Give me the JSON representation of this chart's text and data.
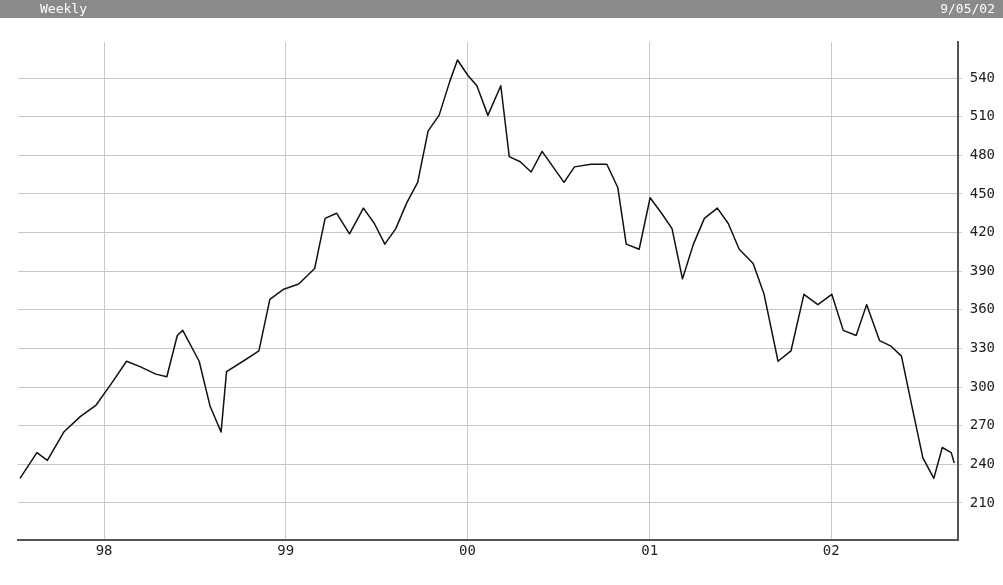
{
  "chart_data": {
    "type": "line",
    "title": "Weekly",
    "annotations": [
      "9/05/02"
    ],
    "x": [
      "1997-07-16",
      "1997-08-19",
      "1997-09-09",
      "1997-10-12",
      "1997-11-14",
      "1997-12-16",
      "1998-01-18",
      "1998-02-15",
      "1998-03-13",
      "1998-04-15",
      "1998-05-07",
      "1998-05-28",
      "1998-06-08",
      "1998-07-11",
      "1998-08-02",
      "1998-08-24",
      "1998-09-04",
      "1998-10-07",
      "1998-11-08",
      "1998-11-30",
      "1998-12-28",
      "1999-01-27",
      "1999-02-28",
      "1999-03-21",
      "1999-04-13",
      "1999-05-09",
      "1999-06-06",
      "1999-06-28",
      "1999-07-19",
      "1999-08-10",
      "1999-09-01",
      "1999-09-23",
      "1999-10-14",
      "1999-11-05",
      "1999-11-27",
      "1999-12-12",
      "2000-01-02",
      "2000-01-20",
      "2000-02-11",
      "2000-03-08",
      "2000-03-25",
      "2000-04-16",
      "2000-05-08",
      "2000-05-30",
      "2000-06-21",
      "2000-07-13",
      "2000-08-03",
      "2000-09-05",
      "2000-10-07",
      "2000-10-29",
      "2000-11-15",
      "2000-12-11",
      "2001-01-02",
      "2001-01-25",
      "2001-02-15",
      "2001-03-08",
      "2001-03-30",
      "2001-04-21",
      "2001-05-17",
      "2001-06-08",
      "2001-06-30",
      "2001-07-28",
      "2001-08-19",
      "2001-09-16",
      "2001-10-12",
      "2001-11-07",
      "2001-12-05",
      "2002-01-02",
      "2002-01-25",
      "2002-02-20",
      "2002-03-13",
      "2002-04-08",
      "2002-04-30",
      "2002-05-22",
      "2002-06-12",
      "2002-07-04",
      "2002-07-26",
      "2002-08-12",
      "2002-08-30",
      "2002-09-05"
    ],
    "series": [
      {
        "color": "#111111",
        "values": [
          229,
          249,
          243,
          265,
          277,
          286,
          304,
          320,
          316,
          310,
          308,
          340,
          344,
          320,
          285,
          265,
          312,
          320,
          328,
          368,
          376,
          380,
          392,
          431,
          435,
          419,
          439,
          427,
          411,
          423,
          443,
          459,
          499,
          511,
          538,
          554,
          542,
          534,
          511,
          534,
          479,
          475,
          467,
          483,
          471,
          459,
          471,
          473,
          473,
          455,
          411,
          407,
          447,
          435,
          423,
          384,
          411,
          431,
          439,
          427,
          407,
          396,
          372,
          320,
          328,
          372,
          364,
          372,
          344,
          340,
          364,
          336,
          332,
          324,
          285,
          245,
          229,
          253,
          249,
          241
        ]
      }
    ],
    "xlim": [
      "1997-07-12",
      "2002-09-12"
    ],
    "xticks": [
      {
        "value": "1998-01-01",
        "label": "98"
      },
      {
        "value": "1999-01-01",
        "label": "99"
      },
      {
        "value": "2000-01-01",
        "label": "00"
      },
      {
        "value": "2001-01-01",
        "label": "01"
      },
      {
        "value": "2002-01-01",
        "label": "02"
      }
    ],
    "ylim": [
      181,
      568
    ],
    "yticks": [
      210,
      240,
      270,
      300,
      330,
      360,
      390,
      420,
      450,
      480,
      510,
      540
    ],
    "grid": true,
    "legend": false,
    "marker": "none",
    "line_style": "solid"
  }
}
